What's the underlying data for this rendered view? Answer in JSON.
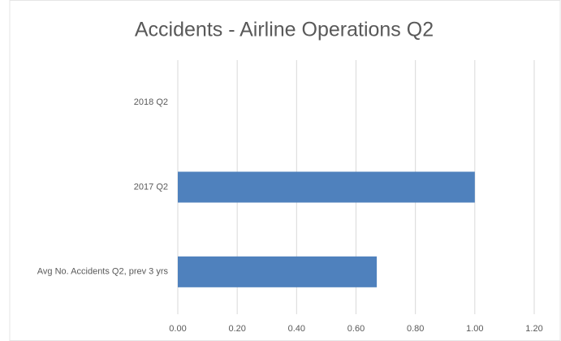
{
  "chart_data": {
    "type": "bar",
    "orientation": "horizontal",
    "title": "Accidents - Airline Operations Q2",
    "categories": [
      "2018 Q2",
      "2017 Q2",
      "Avg No. Accidents Q2,  prev 3 yrs"
    ],
    "values": [
      0,
      1,
      0.67
    ],
    "color": "#4f81bd",
    "xlim": [
      0,
      1.2
    ],
    "xticks": [
      {
        "value": 0,
        "label": "0.00"
      },
      {
        "value": 0.2,
        "label": "0.20"
      },
      {
        "value": 0.4,
        "label": "0.40"
      },
      {
        "value": 0.6,
        "label": "0.60"
      },
      {
        "value": 0.8,
        "label": "0.80"
      },
      {
        "value": 1,
        "label": "1.00"
      },
      {
        "value": 1.2,
        "label": "1.20"
      }
    ],
    "grid": true
  }
}
